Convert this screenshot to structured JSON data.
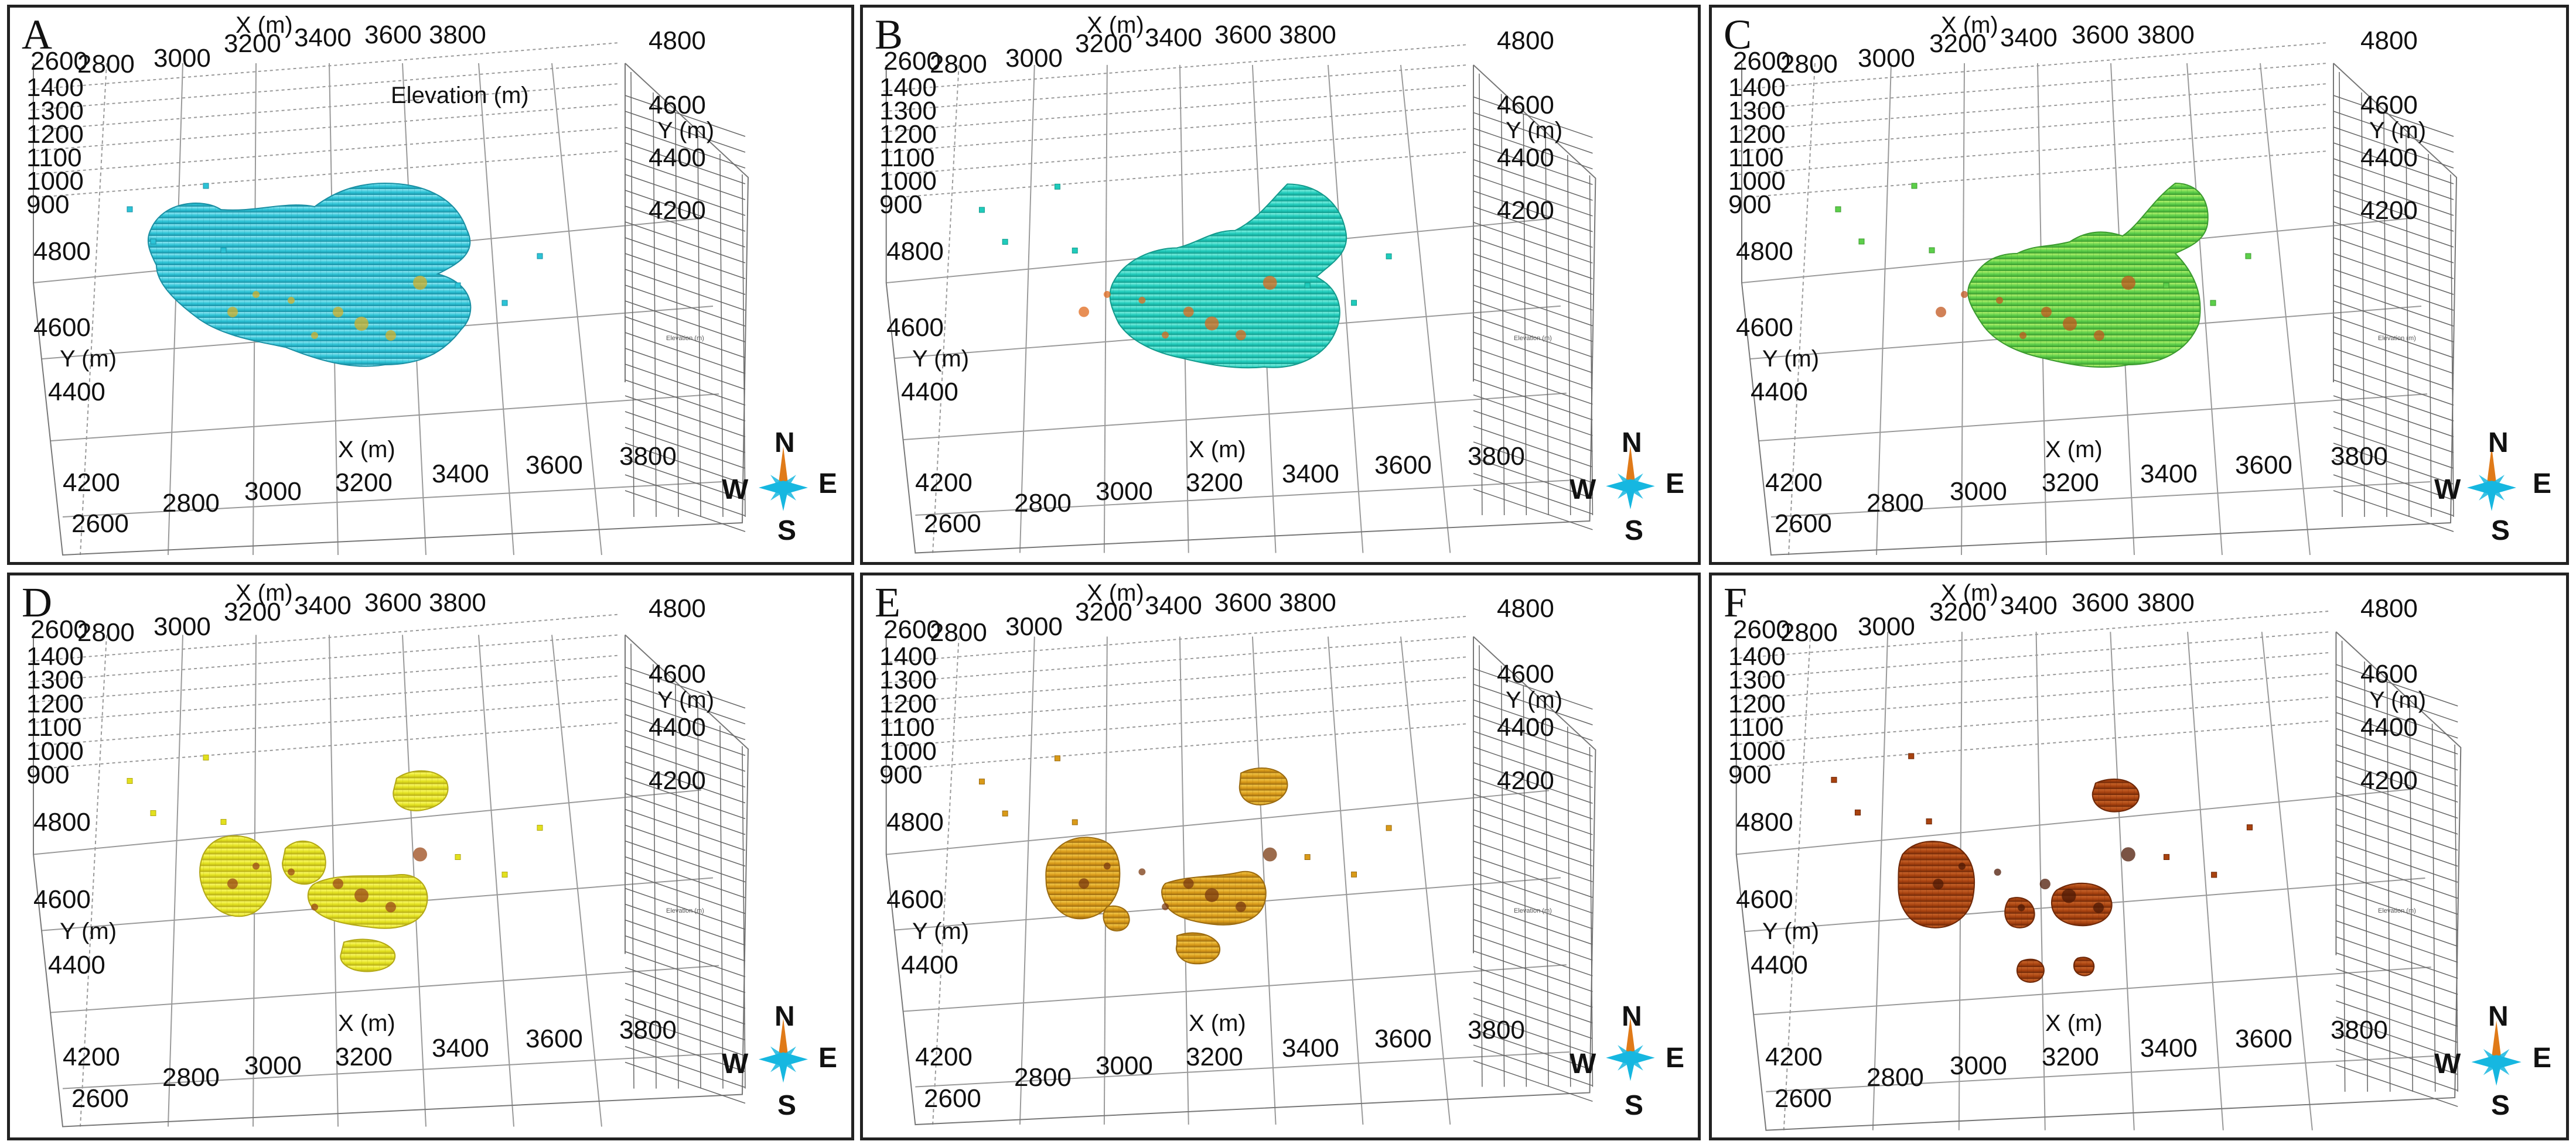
{
  "figure": {
    "panels": [
      {
        "letter": "A",
        "scheme": "cyan",
        "show_elevation_title": true
      },
      {
        "letter": "B",
        "scheme": "teal",
        "show_elevation_title": false
      },
      {
        "letter": "C",
        "scheme": "green",
        "show_elevation_title": false
      },
      {
        "letter": "D",
        "scheme": "yellow",
        "show_elevation_title": false
      },
      {
        "letter": "E",
        "scheme": "amber",
        "show_elevation_title": false
      },
      {
        "letter": "F",
        "scheme": "brown",
        "show_elevation_title": false
      }
    ],
    "axes": {
      "x_ticks": [
        "2600",
        "2800",
        "3000",
        "3200",
        "3400",
        "3600",
        "3800"
      ],
      "x_title": "X (m)",
      "y_ticks_right": [
        "4800",
        "4600",
        "4400",
        "4200"
      ],
      "y_ticks_left": [
        "4800",
        "4600",
        "4400",
        "4200"
      ],
      "y_title": "Y (m)",
      "elevation_ticks": [
        "1400",
        "1300",
        "1200",
        "1100",
        "1000",
        "900"
      ],
      "elevation_title": "Elevation (m)",
      "small_side_label": "Elevation (m)"
    },
    "compass": {
      "north": "N",
      "south": "S",
      "east": "E",
      "west": "W"
    },
    "colors": {
      "cyan": {
        "base": "#2cc3d6",
        "light": "#8ee6f2",
        "dark": "#1a8fa3",
        "accent": "#d4b02a"
      },
      "teal": {
        "base": "#1fcbbb",
        "light": "#7ff0e0",
        "dark": "#139a8c",
        "accent": "#e06a1c"
      },
      "green": {
        "base": "#5ccf4a",
        "light": "#b2f06a",
        "dark": "#3b9a2e",
        "accent": "#c2571f"
      },
      "yellow": {
        "base": "#e2e01e",
        "light": "#fbfb6a",
        "dark": "#b3a816",
        "accent": "#9b4a1a"
      },
      "amber": {
        "base": "#d99a18",
        "light": "#f2c84a",
        "dark": "#9a6a10",
        "accent": "#7a3a10"
      },
      "brown": {
        "base": "#a8420f",
        "light": "#c8642a",
        "dark": "#6e2808",
        "accent": "#4e1a05"
      },
      "compass_cyan": "#16b7e0",
      "compass_orange": "#e07a18"
    }
  }
}
